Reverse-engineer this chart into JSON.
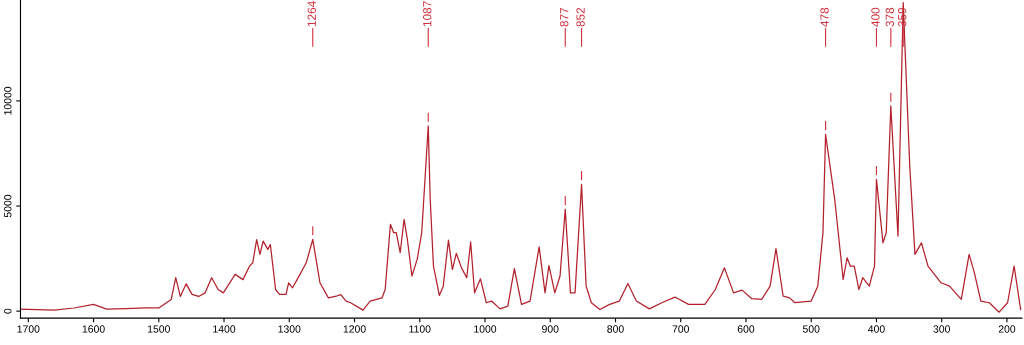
{
  "chart_data": {
    "type": "line",
    "series": [
      {
        "color": "#b3222c",
        "x": [
          1712,
          1660,
          1630,
          1600,
          1580,
          1550,
          1520,
          1500,
          1481,
          1474,
          1467,
          1458,
          1449,
          1439,
          1429,
          1419,
          1409,
          1401,
          1383,
          1371,
          1361,
          1356,
          1350,
          1345,
          1340,
          1333,
          1329,
          1321,
          1315,
          1305,
          1301,
          1295,
          1288,
          1274,
          1264,
          1253,
          1240,
          1228,
          1221,
          1213,
          1206,
          1187,
          1176,
          1158,
          1153,
          1145,
          1140,
          1136,
          1130,
          1124,
          1119,
          1112,
          1104,
          1097,
          1087,
          1084,
          1079,
          1070,
          1064,
          1056,
          1050,
          1044,
          1036,
          1028,
          1022,
          1016,
          1007,
          998,
          990,
          977,
          965,
          955,
          944,
          931,
          917,
          908,
          902,
          893,
          885,
          877,
          869,
          862,
          852,
          845,
          837,
          824,
          809,
          794,
          781,
          768,
          748,
          729,
          709,
          688,
          663,
          647,
          633,
          619,
          606,
          591,
          576,
          563,
          554,
          543,
          533,
          525,
          500,
          490,
          482,
          478,
          464,
          451,
          445,
          440,
          434,
          427,
          421,
          411,
          403,
          400,
          390,
          385,
          378,
          367,
          359,
          349,
          341,
          331,
          321,
          301,
          288,
          270,
          258,
          250,
          240,
          227,
          212,
          199,
          189,
          179
        ],
        "values": [
          100,
          50,
          150,
          320,
          100,
          120,
          150,
          150,
          550,
          1590,
          700,
          1300,
          800,
          700,
          870,
          1590,
          1030,
          870,
          1750,
          1500,
          2140,
          2300,
          3400,
          2700,
          3330,
          2940,
          3170,
          1030,
          800,
          800,
          1350,
          1110,
          1500,
          2300,
          3410,
          1350,
          630,
          710,
          790,
          480,
          400,
          50,
          480,
          630,
          1030,
          4130,
          3730,
          3730,
          2780,
          4370,
          3410,
          1670,
          2460,
          3730,
          8810,
          5320,
          2140,
          750,
          1190,
          3380,
          1980,
          2750,
          2060,
          1590,
          3290,
          870,
          1540,
          400,
          480,
          110,
          240,
          2020,
          320,
          480,
          3060,
          870,
          2170,
          870,
          1670,
          4840,
          870,
          870,
          6030,
          1190,
          400,
          80,
          320,
          480,
          1320,
          480,
          110,
          400,
          670,
          320,
          320,
          1030,
          2060,
          870,
          1000,
          590,
          560,
          1190,
          2970,
          710,
          630,
          400,
          480,
          1190,
          3730,
          8410,
          5320,
          1510,
          2540,
          2140,
          2140,
          1030,
          1590,
          1190,
          2140,
          6270,
          3250,
          3730,
          9760,
          3570,
          14680,
          6900,
          2700,
          3250,
          2140,
          1350,
          1190,
          560,
          2700,
          1830,
          480,
          400,
          -50,
          400,
          2140,
          80
        ]
      }
    ],
    "annotations": [
      {
        "text": "1264",
        "x": 1264
      },
      {
        "text": "1087",
        "x": 1087
      },
      {
        "text": "877",
        "x": 877
      },
      {
        "text": "852",
        "x": 852
      },
      {
        "text": "478",
        "x": 478
      },
      {
        "text": "400",
        "x": 400
      },
      {
        "text": "378",
        "x": 378
      },
      {
        "text": "359",
        "x": 359
      }
    ],
    "xlim": [
      1712,
      177
    ],
    "ylim": [
      -330,
      14800
    ],
    "xticks": [
      1700,
      1600,
      1500,
      1400,
      1300,
      1200,
      1100,
      1000,
      900,
      800,
      700,
      600,
      500,
      400,
      300,
      200
    ],
    "yticks": [
      0,
      5000,
      10000
    ],
    "grid": false,
    "legend": false
  }
}
